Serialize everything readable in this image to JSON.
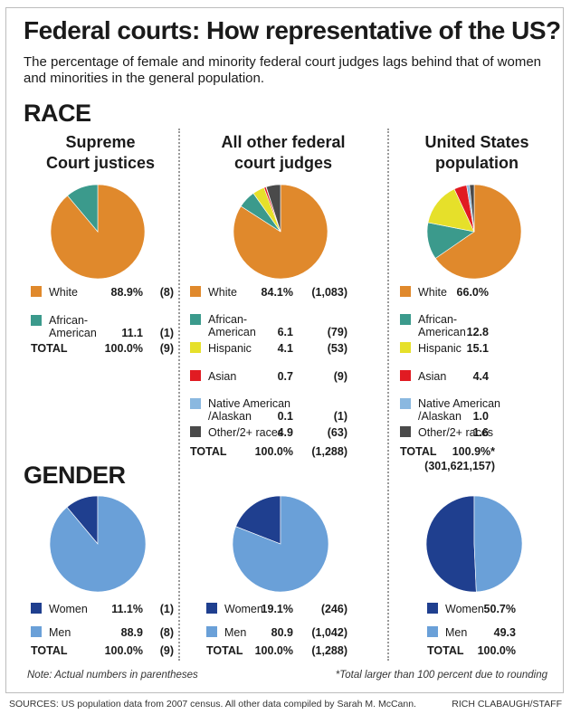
{
  "title": "Federal courts: How representative of the US?",
  "subtitle": "The percentage of female and minority federal court judges lags behind that of women and minorities in the general population.",
  "sections": {
    "race": "RACE",
    "gender": "GENDER"
  },
  "colors": {
    "White": "#e0892c",
    "African-American": "#3b9a8c",
    "Hispanic": "#e6e02a",
    "Asian": "#e11b22",
    "Native American /Alaskan": "#8ab8e0",
    "Other/2+ races": "#4a4a4a",
    "Women": "#1f3f8f",
    "Men": "#6aa0d8"
  },
  "total_label": "TOTAL",
  "chart_data": [
    {
      "type": "pie",
      "section": "race",
      "group": "Supreme Court justices",
      "title_lines": [
        "Supreme",
        "Court justices"
      ],
      "categories": [
        "White",
        "African-American"
      ],
      "labels": [
        [
          "White"
        ],
        [
          "African-",
          "American"
        ]
      ],
      "values": [
        88.9,
        11.1
      ],
      "value_text": [
        "88.9%",
        "11.1"
      ],
      "counts": [
        "(8)",
        "(1)"
      ],
      "total": {
        "value": "100.0%",
        "count": "(9)"
      }
    },
    {
      "type": "pie",
      "section": "race",
      "group": "All other federal court judges",
      "title_lines": [
        "All other federal",
        "court judges"
      ],
      "categories": [
        "White",
        "African-American",
        "Hispanic",
        "Asian",
        "Native American /Alaskan",
        "Other/2+ races"
      ],
      "labels": [
        [
          "White"
        ],
        [
          "African-",
          "American"
        ],
        [
          "Hispanic"
        ],
        [
          "Asian"
        ],
        [
          "Native American",
          "/Alaskan"
        ],
        [
          "Other/2+ races"
        ]
      ],
      "values": [
        84.1,
        6.1,
        4.1,
        0.7,
        0.1,
        4.9
      ],
      "value_text": [
        "84.1%",
        "6.1",
        "4.1",
        "0.7",
        "0.1",
        "4.9"
      ],
      "counts": [
        "(1,083)",
        "(79)",
        "(53)",
        "(9)",
        "(1)",
        "(63)"
      ],
      "total": {
        "value": "100.0%",
        "count": "(1,288)"
      }
    },
    {
      "type": "pie",
      "section": "race",
      "group": "United States population",
      "title_lines": [
        "United States",
        "population"
      ],
      "categories": [
        "White",
        "African-American",
        "Hispanic",
        "Asian",
        "Native American /Alaskan",
        "Other/2+ races"
      ],
      "labels": [
        [
          "White"
        ],
        [
          "African-",
          "American"
        ],
        [
          "Hispanic"
        ],
        [
          "Asian"
        ],
        [
          "Native American",
          "/Alaskan"
        ],
        [
          "Other/2+ races"
        ]
      ],
      "values": [
        66.0,
        12.8,
        15.1,
        4.4,
        1.0,
        1.6
      ],
      "value_text": [
        "66.0%",
        "12.8",
        "15.1",
        "4.4",
        "1.0",
        "1.6"
      ],
      "counts": [],
      "total": {
        "value": "100.9%*",
        "count": "(301,621,157)"
      }
    },
    {
      "type": "pie",
      "section": "gender",
      "group": "Supreme Court justices",
      "categories": [
        "Women",
        "Men"
      ],
      "labels": [
        [
          "Women"
        ],
        [
          "Men"
        ]
      ],
      "values": [
        11.1,
        88.9
      ],
      "value_text": [
        "11.1%",
        "88.9"
      ],
      "counts": [
        "(1)",
        "(8)"
      ],
      "total": {
        "value": "100.0%",
        "count": "(9)"
      }
    },
    {
      "type": "pie",
      "section": "gender",
      "group": "All other federal court judges",
      "categories": [
        "Women",
        "Men"
      ],
      "labels": [
        [
          "Women"
        ],
        [
          "Men"
        ]
      ],
      "values": [
        19.1,
        80.9
      ],
      "value_text": [
        "19.1%",
        "80.9"
      ],
      "counts": [
        "(246)",
        "(1,042)"
      ],
      "total": {
        "value": "100.0%",
        "count": "(1,288)"
      }
    },
    {
      "type": "pie",
      "section": "gender",
      "group": "United States population",
      "categories": [
        "Women",
        "Men"
      ],
      "labels": [
        [
          "Women"
        ],
        [
          "Men"
        ]
      ],
      "values": [
        50.7,
        49.3
      ],
      "value_text": [
        "50.7%",
        "49.3"
      ],
      "counts": [],
      "total": {
        "value": "100.0%",
        "count": ""
      }
    }
  ],
  "notes": {
    "left": "Note: Actual numbers in parentheses",
    "right": "*Total larger than 100 percent due to rounding"
  },
  "footer": {
    "sources": "SOURCES: US population data from 2007 census. All other data compiled by Sarah M. McCann.",
    "credit": "RICH CLABAUGH/STAFF"
  }
}
